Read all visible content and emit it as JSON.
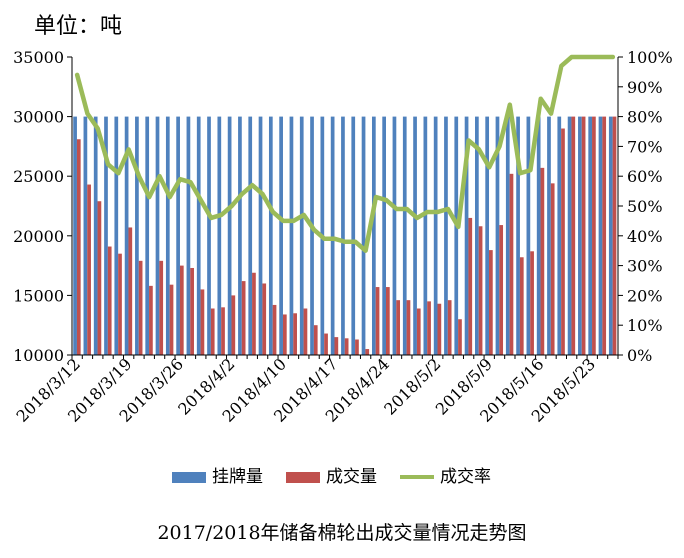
{
  "unit_label": "单位：吨",
  "caption": "2017/2018年储备棉轮出成交量情况走势图",
  "colors": {
    "listed": "#4f81bd",
    "traded": "#c0504d",
    "rate": "#9bbb59",
    "axis": "#000000"
  },
  "chart_data": {
    "type": "bar",
    "title": "2017/2018年储备棉轮出成交量情况走势图",
    "ylabel": "单位：吨",
    "ylim": [
      10000,
      35000
    ],
    "y_ticks": [
      10000,
      15000,
      20000,
      25000,
      30000,
      35000
    ],
    "y2lim": [
      0,
      100
    ],
    "y2_ticks": [
      "0%",
      "10%",
      "20%",
      "30%",
      "40%",
      "50%",
      "60%",
      "70%",
      "80%",
      "90%",
      "100%"
    ],
    "x_tick_labels": [
      "2018/3/12",
      "2018/3/19",
      "2018/3/26",
      "2018/4/2",
      "2018/4/10",
      "2018/4/17",
      "2018/4/24",
      "2018/5/2",
      "2018/5/9",
      "2018/5/16",
      "2018/5/23"
    ],
    "x_tick_index": [
      0,
      5,
      10,
      15,
      20,
      25,
      30,
      35,
      40,
      45,
      50
    ],
    "legend_position": "bottom",
    "grid": false,
    "series": [
      {
        "name": "挂牌量",
        "kind": "bar",
        "axis": "left",
        "values": [
          30000,
          30000,
          30000,
          30000,
          30000,
          30000,
          30000,
          30000,
          30000,
          30000,
          30000,
          30000,
          30000,
          30000,
          30000,
          30000,
          30000,
          30000,
          30000,
          30000,
          30000,
          30000,
          30000,
          30000,
          30000,
          30000,
          30000,
          30000,
          30000,
          30000,
          30000,
          30000,
          30000,
          30000,
          30000,
          30000,
          30000,
          30000,
          30000,
          30000,
          30000,
          30000,
          30000,
          30000,
          30000,
          30000,
          30000,
          30000,
          30000,
          30000,
          30000,
          30000,
          30000
        ]
      },
      {
        "name": "成交量",
        "kind": "bar",
        "axis": "left",
        "values": [
          28100,
          24300,
          22900,
          19100,
          18500,
          20700,
          17900,
          15800,
          17900,
          15900,
          17500,
          17300,
          15500,
          13900,
          14000,
          15000,
          16200,
          16900,
          16000,
          14200,
          13400,
          13500,
          13900,
          12500,
          11800,
          11500,
          11400,
          11300,
          10500,
          15700,
          15700,
          14600,
          14600,
          13900,
          14500,
          14300,
          14600,
          13000,
          21500,
          20800,
          18800,
          20900,
          25200,
          18200,
          18700,
          25700,
          24400,
          29000,
          30000,
          30000,
          30000,
          30000,
          30000
        ]
      },
      {
        "name": "成交率",
        "kind": "line",
        "axis": "right",
        "values": [
          94,
          81,
          76,
          64,
          61,
          69,
          60,
          53,
          60,
          53,
          59,
          58,
          52,
          46,
          47,
          50,
          54,
          57,
          54,
          48,
          45,
          45,
          47,
          42,
          39,
          39,
          38,
          38,
          35,
          53,
          52,
          49,
          49,
          46,
          48,
          48,
          49,
          43,
          72,
          69,
          63,
          70,
          84,
          61,
          62,
          86,
          81,
          97,
          100,
          100,
          100,
          100,
          100
        ]
      }
    ]
  }
}
